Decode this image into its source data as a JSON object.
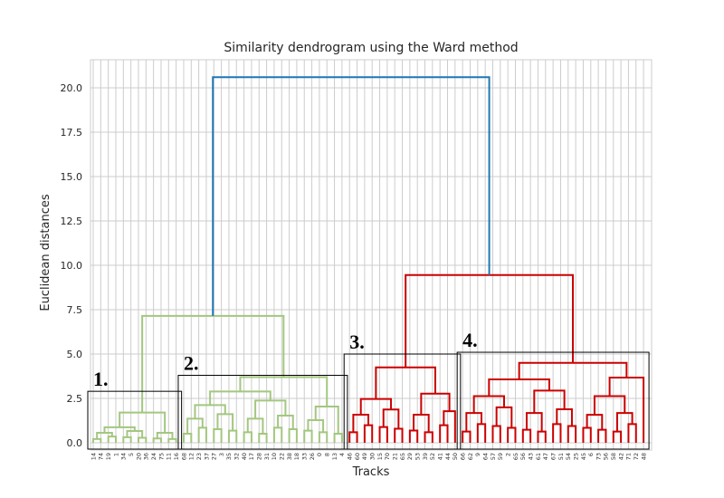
{
  "chart_data": {
    "type": "dendrogram",
    "title": "Similarity dendrogram using the Ward method",
    "xlabel": "Tracks",
    "ylabel": "Euclidean distances",
    "ylim": [
      0,
      21.6
    ],
    "yticks": [
      "0.0",
      "2.5",
      "5.0",
      "7.5",
      "10.0",
      "12.5",
      "15.0",
      "17.5",
      "20.0"
    ],
    "grid": true,
    "colors": {
      "green": "#a3c77f",
      "red": "#cc0000",
      "blue": "#1f77b4",
      "grid": "#cccccc",
      "box": "#000000"
    },
    "leaves": [
      "14",
      "74",
      "19",
      "1",
      "34",
      "5",
      "20",
      "36",
      "24",
      "75",
      "11",
      "16",
      "68",
      "12",
      "23",
      "37",
      "27",
      "3",
      "35",
      "32",
      "40",
      "17",
      "28",
      "31",
      "10",
      "22",
      "38",
      "18",
      "33",
      "26",
      "0",
      "8",
      "13",
      "4",
      "46",
      "60",
      "49",
      "30",
      "15",
      "70",
      "21",
      "65",
      "29",
      "53",
      "39",
      "52",
      "41",
      "44",
      "50",
      "66",
      "62",
      "9",
      "64",
      "57",
      "59",
      "2",
      "65",
      "56",
      "43",
      "61",
      "47",
      "67",
      "51",
      "54",
      "25",
      "45",
      "6",
      "73",
      "56",
      "58",
      "42",
      "71",
      "72",
      "48"
    ],
    "merges": [
      {
        "left": [
          0,
          1.0
        ],
        "right": [
          11,
          1.0
        ],
        "height": 1.7,
        "color": "green"
      },
      {
        "left": [
          12,
          2.2
        ],
        "right": [
          33,
          3.2
        ],
        "height": 3.7,
        "color": "green"
      },
      {
        "left": [
          5.5,
          1.7
        ],
        "right": [
          22.5,
          3.7
        ],
        "height": 7.15,
        "color": "green"
      },
      {
        "left": [
          34,
          1.0
        ],
        "right": [
          46,
          2.3
        ],
        "height": 4.25,
        "color": "red"
      },
      {
        "left": [
          49,
          1.0
        ],
        "right": [
          57,
          2.6
        ],
        "height": 4.5,
        "color": "red"
      },
      {
        "left": [
          40,
          4.25
        ],
        "right": [
          53,
          4.5
        ],
        "height": 9.45,
        "color": "red"
      },
      {
        "left": [
          14.25,
          7.15
        ],
        "right": [
          46.5,
          9.45
        ],
        "height": 20.6,
        "color": "blue"
      }
    ],
    "clusters": [
      {
        "label": "1.",
        "first_leaf": 0,
        "last_leaf": 11,
        "top": 2.9
      },
      {
        "label": "2.",
        "first_leaf": 12,
        "last_leaf": 33,
        "top": 3.8
      },
      {
        "label": "3.",
        "first_leaf": 34,
        "last_leaf": 48,
        "top": 5.0
      },
      {
        "label": "4.",
        "first_leaf": 49,
        "last_leaf": 73,
        "top": 5.1
      }
    ]
  }
}
